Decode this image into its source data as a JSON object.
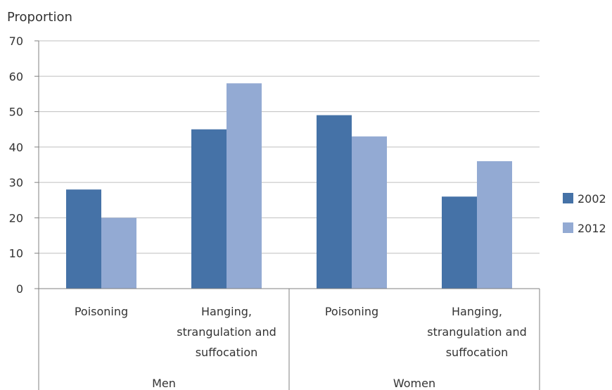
{
  "chart_data": {
    "type": "bar",
    "ylabel": "Proportion",
    "ylim": [
      0,
      70
    ],
    "yticks": [
      0,
      10,
      20,
      30,
      40,
      50,
      60,
      70
    ],
    "grid": true,
    "legend_position": "right",
    "groups": [
      {
        "label": "Men",
        "categories": [
          [
            "Poisoning"
          ],
          [
            "Hanging,",
            "strangulation and",
            "suffocation"
          ]
        ]
      },
      {
        "label": "Women",
        "categories": [
          [
            "Poisoning"
          ],
          [
            "Hanging,",
            "strangulation and",
            "suffocation"
          ]
        ]
      }
    ],
    "series": [
      {
        "name": "2002",
        "color": "#4572a7",
        "values": [
          28,
          45,
          49,
          26
        ]
      },
      {
        "name": "2012",
        "color": "#93aad3",
        "values": [
          20,
          58,
          43,
          36
        ]
      }
    ]
  }
}
